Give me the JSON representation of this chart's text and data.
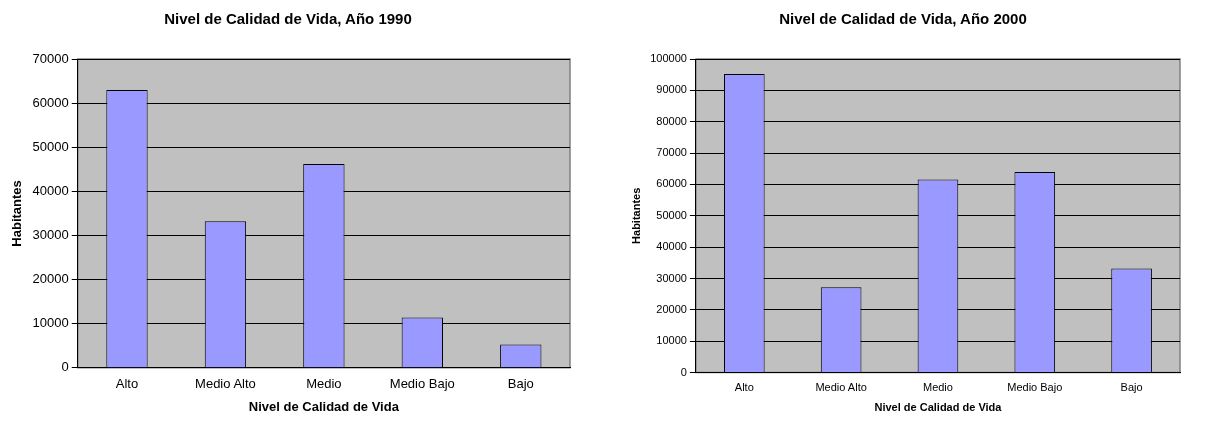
{
  "chart_data": [
    {
      "type": "bar",
      "title": "Nivel de Calidad de Vida, Año 1990",
      "xlabel": "Nivel de Calidad de Vida",
      "ylabel": "Habitantes",
      "categories": [
        "Alto",
        "Medio Alto",
        "Medio",
        "Medio Bajo",
        "Bajo"
      ],
      "values": [
        63000,
        33200,
        46200,
        11400,
        5300
      ],
      "color": "#9999ff",
      "ylim": [
        0,
        70000
      ],
      "yticks": [
        0,
        10000,
        20000,
        30000,
        40000,
        50000,
        60000,
        70000
      ],
      "grid": "y",
      "legend": false
    },
    {
      "type": "bar",
      "title": "Nivel de Calidad de Vida, Año 2000",
      "xlabel": "Nivel de Calidad de Vida",
      "ylabel": "Habitantes",
      "categories": [
        "Alto",
        "Medio Alto",
        "Medio",
        "Medio Bajo",
        "Bajo"
      ],
      "values": [
        95200,
        27200,
        61600,
        64000,
        33200
      ],
      "color": "#9999ff",
      "ylim": [
        0,
        100000
      ],
      "yticks": [
        0,
        10000,
        20000,
        30000,
        40000,
        50000,
        60000,
        70000,
        80000,
        90000,
        100000
      ],
      "grid": "y",
      "legend": false
    }
  ]
}
